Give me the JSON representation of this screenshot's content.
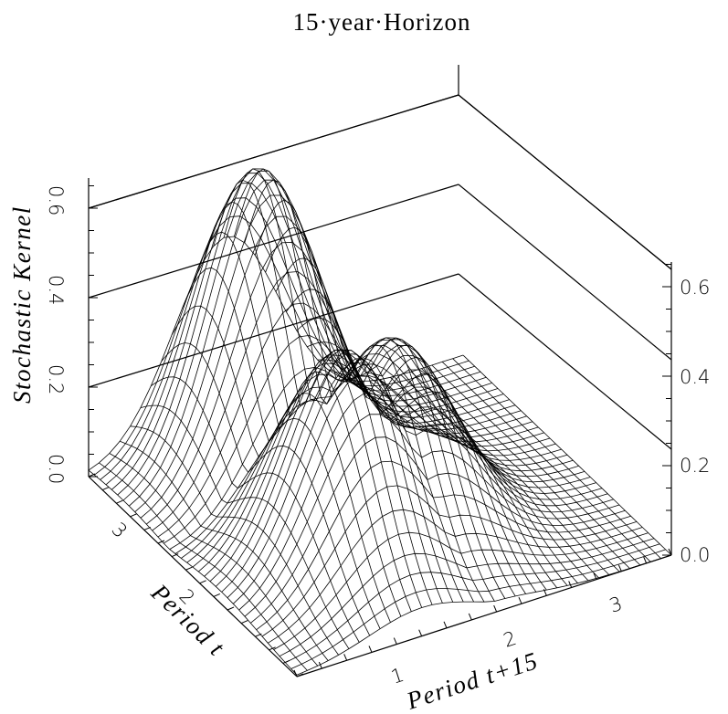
{
  "chart_data": {
    "type": "surface",
    "title": "15-year Horizon",
    "title_display": "15·year·Horizon",
    "xlabel": "Period t+15",
    "ylabel": "Period t",
    "zlabel": "Stochastic Kernel",
    "x_ticks": [
      "1",
      "2",
      "3"
    ],
    "y_ticks": [
      "2",
      "3"
    ],
    "z_ticks_left": [
      "0.0",
      "0.2",
      "0.4",
      "0.6"
    ],
    "z_ticks_right": [
      "0.0",
      "0.2",
      "0.4",
      "0.6"
    ],
    "xlim": [
      0.5,
      3.5
    ],
    "ylim": [
      0.5,
      3.5
    ],
    "zlim": [
      0,
      0.65
    ],
    "grid": false,
    "surface_peaks": [
      {
        "x": 1.6,
        "y": 3.0,
        "z": 0.66
      },
      {
        "x": 1.5,
        "y": 1.6,
        "z": 0.47
      },
      {
        "x": 2.0,
        "y": 1.8,
        "z": 0.42
      }
    ],
    "line_color": "#000000"
  }
}
